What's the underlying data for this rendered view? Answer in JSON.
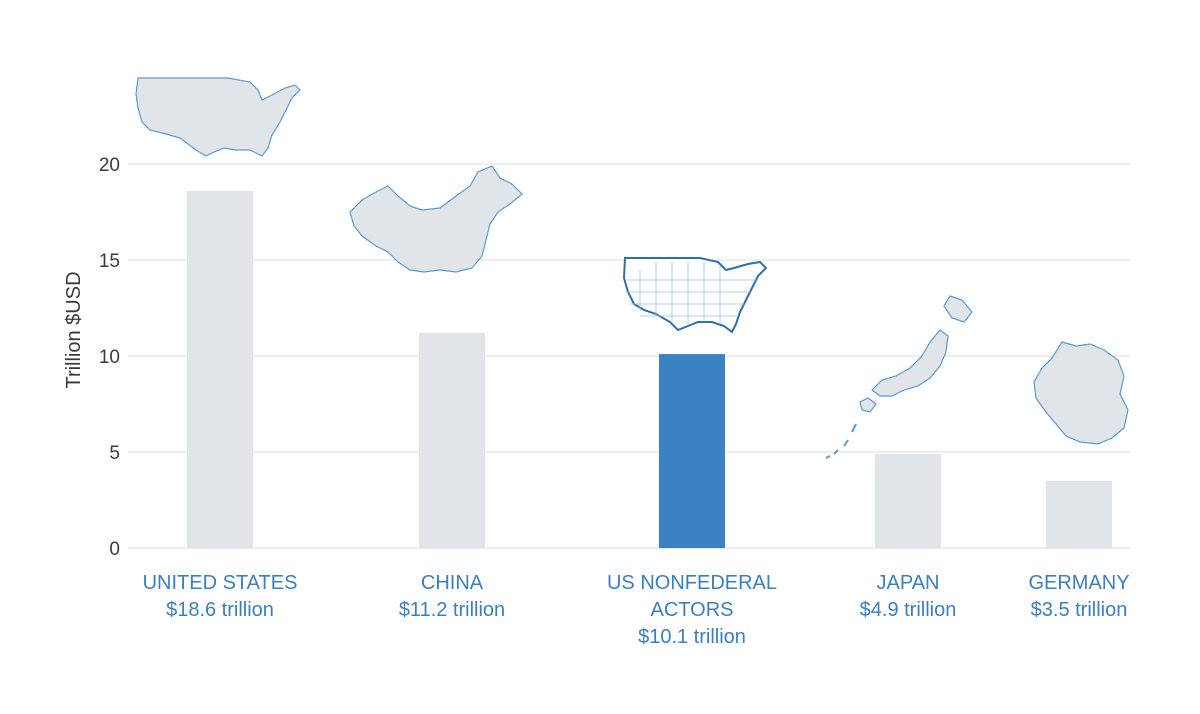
{
  "chart_data": {
    "type": "bar",
    "ylabel": "Trillion $USD",
    "ylim": [
      0,
      20
    ],
    "yticks": [
      0,
      5,
      10,
      15,
      20
    ],
    "grid": true,
    "categories": [
      {
        "name_lines": [
          "UNITED STATES"
        ],
        "value_label": "$18.6 trillion",
        "value": 18.6,
        "highlight": false,
        "icon": "usa-map-icon"
      },
      {
        "name_lines": [
          "CHINA"
        ],
        "value_label": "$11.2 trillion",
        "value": 11.2,
        "highlight": false,
        "icon": "china-map-icon"
      },
      {
        "name_lines": [
          "US NONFEDERAL",
          "ACTORS"
        ],
        "value_label": "$10.1 trillion",
        "value": 10.1,
        "highlight": true,
        "icon": "usa-counties-map-icon"
      },
      {
        "name_lines": [
          "JAPAN"
        ],
        "value_label": "$4.9 trillion",
        "value": 4.9,
        "highlight": false,
        "icon": "japan-map-icon"
      },
      {
        "name_lines": [
          "GERMANY"
        ],
        "value_label": "$3.5 trillion",
        "value": 3.5,
        "highlight": false,
        "icon": "germany-map-icon"
      }
    ],
    "colors": {
      "bar": "#e1e4e8",
      "bar_highlight": "#3b82c4",
      "label": "#3b7fc0",
      "axis_text": "#3a3a3a"
    }
  }
}
